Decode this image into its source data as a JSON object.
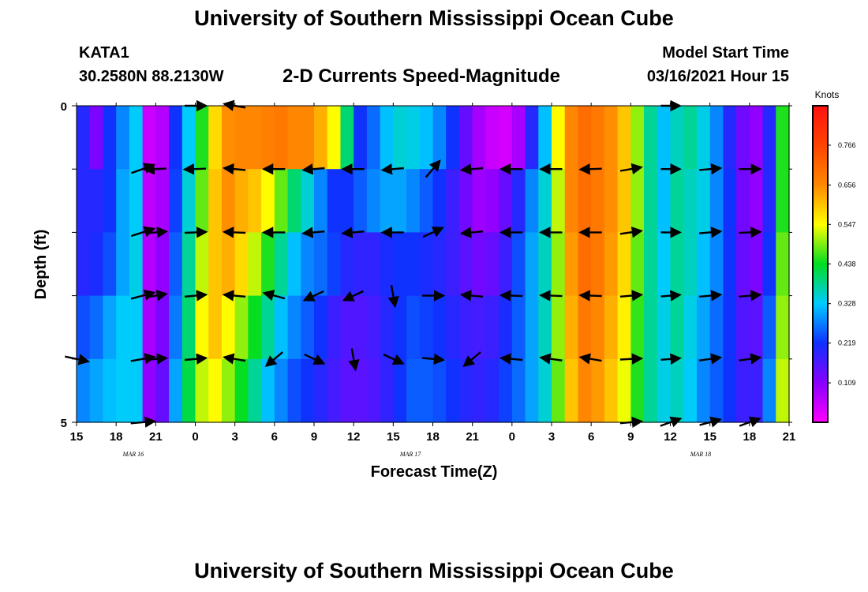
{
  "header": {
    "title": "University of Southern Mississippi Ocean Cube",
    "station": "KATA1",
    "coordinates": "30.2580N 88.2130W",
    "subtitle": "2-D Currents Speed-Magnitude",
    "model_start_label": "Model Start Time",
    "model_start_value": "03/16/2021 Hour 15"
  },
  "footer": {
    "title": "University of Southern Mississippi Ocean Cube"
  },
  "chart_data": {
    "type": "heatmap",
    "title": "2-D Currents Speed-Magnitude",
    "xlabel": "Forecast Time(Z)",
    "ylabel": "Depth (ft)",
    "x_ticks": [
      "15",
      "18",
      "21",
      "0",
      "3",
      "6",
      "9",
      "12",
      "15",
      "18",
      "21",
      "0",
      "3",
      "6",
      "9",
      "12",
      "15",
      "18",
      "21"
    ],
    "x_hours": [
      15,
      18,
      21,
      24,
      27,
      30,
      33,
      36,
      39,
      42,
      45,
      48,
      51,
      54,
      57,
      60,
      63,
      66,
      69
    ],
    "date_labels": [
      {
        "text": "MAR  16",
        "hour": 19.3
      },
      {
        "text": "MAR  17",
        "hour": 40.3
      },
      {
        "text": "MAR  18",
        "hour": 62.3
      }
    ],
    "xlim": [
      15,
      69
    ],
    "y_ticks": [
      "0",
      "5"
    ],
    "ylim": [
      0,
      5
    ],
    "colorbar": {
      "label": "Knots",
      "ticks": [
        "0.766",
        "0.656",
        "0.547",
        "0.438",
        "0.328",
        "0.219",
        "0.109"
      ],
      "range": [
        0.0,
        0.875
      ]
    },
    "depth_rows": 5,
    "columns": 54,
    "speed": [
      [
        0.2,
        0.12,
        0.22,
        0.28,
        0.33,
        0.05,
        0.07,
        0.22,
        0.33,
        0.45,
        0.58,
        0.65,
        0.66,
        0.66,
        0.67,
        0.68,
        0.66,
        0.66,
        0.62,
        0.55,
        0.4,
        0.22,
        0.26,
        0.32,
        0.35,
        0.34,
        0.32,
        0.28,
        0.22,
        0.14,
        0.08,
        0.05,
        0.04,
        0.08,
        0.2,
        0.32,
        0.55,
        0.66,
        0.7,
        0.68,
        0.65,
        0.6,
        0.5,
        0.38,
        0.32,
        0.36,
        0.38,
        0.34,
        0.28,
        0.2,
        0.13,
        0.1,
        0.2,
        0.45
      ],
      [
        0.2,
        0.2,
        0.22,
        0.3,
        0.33,
        0.06,
        0.08,
        0.23,
        0.35,
        0.48,
        0.6,
        0.65,
        0.62,
        0.6,
        0.55,
        0.48,
        0.4,
        0.35,
        0.28,
        0.22,
        0.22,
        0.25,
        0.28,
        0.3,
        0.3,
        0.28,
        0.25,
        0.22,
        0.18,
        0.13,
        0.09,
        0.1,
        0.14,
        0.2,
        0.28,
        0.35,
        0.52,
        0.66,
        0.7,
        0.68,
        0.65,
        0.6,
        0.5,
        0.38,
        0.32,
        0.38,
        0.36,
        0.34,
        0.28,
        0.22,
        0.13,
        0.1,
        0.2,
        0.45
      ],
      [
        0.2,
        0.21,
        0.24,
        0.3,
        0.34,
        0.07,
        0.1,
        0.25,
        0.38,
        0.52,
        0.6,
        0.62,
        0.58,
        0.52,
        0.45,
        0.38,
        0.32,
        0.28,
        0.26,
        0.23,
        0.2,
        0.19,
        0.19,
        0.21,
        0.22,
        0.22,
        0.21,
        0.2,
        0.18,
        0.15,
        0.13,
        0.14,
        0.18,
        0.24,
        0.3,
        0.36,
        0.5,
        0.64,
        0.7,
        0.68,
        0.64,
        0.58,
        0.48,
        0.38,
        0.33,
        0.38,
        0.36,
        0.32,
        0.28,
        0.22,
        0.14,
        0.12,
        0.22,
        0.48
      ],
      [
        0.24,
        0.26,
        0.3,
        0.33,
        0.33,
        0.08,
        0.12,
        0.27,
        0.4,
        0.55,
        0.6,
        0.55,
        0.5,
        0.44,
        0.38,
        0.32,
        0.28,
        0.25,
        0.22,
        0.18,
        0.16,
        0.16,
        0.17,
        0.2,
        0.22,
        0.24,
        0.23,
        0.22,
        0.2,
        0.18,
        0.17,
        0.18,
        0.21,
        0.25,
        0.3,
        0.36,
        0.5,
        0.62,
        0.68,
        0.66,
        0.62,
        0.56,
        0.46,
        0.38,
        0.34,
        0.38,
        0.34,
        0.3,
        0.26,
        0.22,
        0.16,
        0.15,
        0.25,
        0.5
      ],
      [
        0.28,
        0.3,
        0.32,
        0.33,
        0.33,
        0.1,
        0.14,
        0.3,
        0.42,
        0.52,
        0.55,
        0.5,
        0.44,
        0.38,
        0.32,
        0.28,
        0.24,
        0.22,
        0.2,
        0.17,
        0.15,
        0.15,
        0.16,
        0.19,
        0.22,
        0.25,
        0.25,
        0.24,
        0.22,
        0.2,
        0.19,
        0.2,
        0.23,
        0.26,
        0.3,
        0.35,
        0.48,
        0.6,
        0.66,
        0.64,
        0.6,
        0.54,
        0.45,
        0.38,
        0.34,
        0.36,
        0.33,
        0.28,
        0.25,
        0.22,
        0.18,
        0.18,
        0.28,
        0.52
      ]
    ],
    "vectors": [
      {
        "hour": 20.0,
        "depth": 1,
        "angle": -20,
        "len": 1.0
      },
      {
        "hour": 20.0,
        "depth": 2,
        "angle": -18,
        "len": 1.0
      },
      {
        "hour": 20.0,
        "depth": 3,
        "angle": -15,
        "len": 1.0
      },
      {
        "hour": 20.0,
        "depth": 4,
        "angle": -10,
        "len": 1.0
      },
      {
        "hour": 20.0,
        "depth": 5,
        "angle": -5,
        "len": 1.0
      },
      {
        "hour": 15.0,
        "depth": 4,
        "angle": 12,
        "len": 1.0
      },
      {
        "hour": 21.0,
        "depth": 1,
        "angle": 177,
        "len": 0.9
      },
      {
        "hour": 21.0,
        "depth": 2,
        "angle": -5,
        "len": 0.9
      },
      {
        "hour": 21.0,
        "depth": 3,
        "angle": -10,
        "len": 0.9
      },
      {
        "hour": 21.0,
        "depth": 4,
        "angle": -5,
        "len": 0.9
      },
      {
        "hour": 24.0,
        "depth": 0,
        "angle": 0,
        "len": 0.9
      },
      {
        "hour": 24.0,
        "depth": 1,
        "angle": 178,
        "len": 0.9
      },
      {
        "hour": 24.0,
        "depth": 2,
        "angle": -2,
        "len": 0.9
      },
      {
        "hour": 24.0,
        "depth": 3,
        "angle": -5,
        "len": 0.9
      },
      {
        "hour": 24.0,
        "depth": 4,
        "angle": -5,
        "len": 0.9
      },
      {
        "hour": 27.0,
        "depth": 0,
        "angle": -170,
        "len": 0.9
      },
      {
        "hour": 27.0,
        "depth": 1,
        "angle": -175,
        "len": 0.9
      },
      {
        "hour": 27.0,
        "depth": 2,
        "angle": -178,
        "len": 0.9
      },
      {
        "hour": 27.0,
        "depth": 3,
        "angle": -175,
        "len": 0.9
      },
      {
        "hour": 27.0,
        "depth": 4,
        "angle": -170,
        "len": 0.9
      },
      {
        "hour": 30.0,
        "depth": 1,
        "angle": 180,
        "len": 0.9
      },
      {
        "hour": 30.0,
        "depth": 2,
        "angle": 180,
        "len": 0.9
      },
      {
        "hour": 30.0,
        "depth": 3,
        "angle": -165,
        "len": 0.9
      },
      {
        "hour": 30.0,
        "depth": 4,
        "angle": 140,
        "len": 0.9
      },
      {
        "hour": 33.0,
        "depth": 1,
        "angle": 175,
        "len": 0.9
      },
      {
        "hour": 33.0,
        "depth": 2,
        "angle": 175,
        "len": 0.9
      },
      {
        "hour": 33.0,
        "depth": 3,
        "angle": 155,
        "len": 0.9
      },
      {
        "hour": 33.0,
        "depth": 4,
        "angle": 25,
        "len": 0.9
      },
      {
        "hour": 36.0,
        "depth": 1,
        "angle": 180,
        "len": 0.9
      },
      {
        "hour": 36.0,
        "depth": 2,
        "angle": 175,
        "len": 0.9
      },
      {
        "hour": 36.0,
        "depth": 3,
        "angle": 155,
        "len": 0.9
      },
      {
        "hour": 36.0,
        "depth": 4,
        "angle": 80,
        "len": 0.9
      },
      {
        "hour": 39.0,
        "depth": 1,
        "angle": 175,
        "len": 0.9
      },
      {
        "hour": 39.0,
        "depth": 2,
        "angle": 180,
        "len": 0.9
      },
      {
        "hour": 39.0,
        "depth": 3,
        "angle": 80,
        "len": 0.9
      },
      {
        "hour": 39.0,
        "depth": 4,
        "angle": 25,
        "len": 0.9
      },
      {
        "hour": 42.0,
        "depth": 1,
        "angle": -50,
        "len": 0.9
      },
      {
        "hour": 42.0,
        "depth": 2,
        "angle": -25,
        "len": 0.9
      },
      {
        "hour": 42.0,
        "depth": 3,
        "angle": 0,
        "len": 0.9
      },
      {
        "hour": 42.0,
        "depth": 4,
        "angle": 5,
        "len": 0.9
      },
      {
        "hour": 45.0,
        "depth": 1,
        "angle": 175,
        "len": 0.9
      },
      {
        "hour": 45.0,
        "depth": 2,
        "angle": 175,
        "len": 0.9
      },
      {
        "hour": 45.0,
        "depth": 3,
        "angle": -175,
        "len": 0.9
      },
      {
        "hour": 45.0,
        "depth": 4,
        "angle": 140,
        "len": 0.9
      },
      {
        "hour": 48.0,
        "depth": 1,
        "angle": 180,
        "len": 0.9
      },
      {
        "hour": 48.0,
        "depth": 2,
        "angle": 180,
        "len": 0.9
      },
      {
        "hour": 48.0,
        "depth": 3,
        "angle": -178,
        "len": 0.9
      },
      {
        "hour": 48.0,
        "depth": 4,
        "angle": -175,
        "len": 0.9
      },
      {
        "hour": 51.0,
        "depth": 1,
        "angle": 180,
        "len": 0.9
      },
      {
        "hour": 51.0,
        "depth": 2,
        "angle": 180,
        "len": 0.9
      },
      {
        "hour": 51.0,
        "depth": 3,
        "angle": -178,
        "len": 0.9
      },
      {
        "hour": 51.0,
        "depth": 4,
        "angle": -172,
        "len": 0.9
      },
      {
        "hour": 54.0,
        "depth": 1,
        "angle": 178,
        "len": 0.9
      },
      {
        "hour": 54.0,
        "depth": 2,
        "angle": 180,
        "len": 0.9
      },
      {
        "hour": 54.0,
        "depth": 3,
        "angle": -178,
        "len": 0.9
      },
      {
        "hour": 54.0,
        "depth": 4,
        "angle": -170,
        "len": 0.9
      },
      {
        "hour": 57.0,
        "depth": 1,
        "angle": -10,
        "len": 0.9
      },
      {
        "hour": 57.0,
        "depth": 2,
        "angle": -8,
        "len": 0.9
      },
      {
        "hour": 57.0,
        "depth": 3,
        "angle": -5,
        "len": 0.9
      },
      {
        "hour": 57.0,
        "depth": 4,
        "angle": -3,
        "len": 0.9
      },
      {
        "hour": 57.0,
        "depth": 5,
        "angle": -5,
        "len": 0.9
      },
      {
        "hour": 60.0,
        "depth": 0,
        "angle": 0,
        "len": 0.8
      },
      {
        "hour": 60.0,
        "depth": 1,
        "angle": 0,
        "len": 0.8
      },
      {
        "hour": 60.0,
        "depth": 2,
        "angle": 0,
        "len": 0.8
      },
      {
        "hour": 60.0,
        "depth": 3,
        "angle": -5,
        "len": 0.8
      },
      {
        "hour": 60.0,
        "depth": 4,
        "angle": -5,
        "len": 0.8
      },
      {
        "hour": 60.0,
        "depth": 5,
        "angle": -20,
        "len": 0.9
      },
      {
        "hour": 63.0,
        "depth": 1,
        "angle": -5,
        "len": 0.9
      },
      {
        "hour": 63.0,
        "depth": 2,
        "angle": -5,
        "len": 0.9
      },
      {
        "hour": 63.0,
        "depth": 3,
        "angle": -5,
        "len": 0.9
      },
      {
        "hour": 63.0,
        "depth": 4,
        "angle": -8,
        "len": 0.9
      },
      {
        "hour": 63.0,
        "depth": 5,
        "angle": -15,
        "len": 0.9
      },
      {
        "hour": 66.0,
        "depth": 1,
        "angle": 0,
        "len": 0.9
      },
      {
        "hour": 66.0,
        "depth": 2,
        "angle": -3,
        "len": 0.9
      },
      {
        "hour": 66.0,
        "depth": 3,
        "angle": -5,
        "len": 0.9
      },
      {
        "hour": 66.0,
        "depth": 4,
        "angle": -8,
        "len": 0.9
      },
      {
        "hour": 66.0,
        "depth": 5,
        "angle": -20,
        "len": 0.9
      }
    ]
  }
}
